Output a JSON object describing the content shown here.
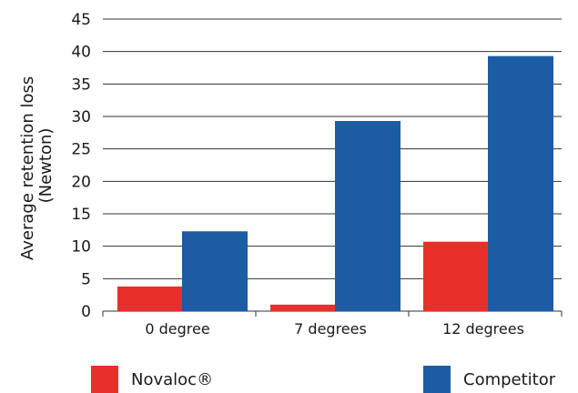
{
  "chart_data": {
    "type": "bar",
    "categories": [
      "0 degree",
      "7 degrees",
      "12 degrees"
    ],
    "series": [
      {
        "name": "Novaloc®",
        "values": [
          3.8,
          1.0,
          10.7
        ],
        "color": "#e8302a"
      },
      {
        "name": "Competitor",
        "values": [
          12.3,
          29.3,
          39.3
        ],
        "color": "#1b5ca3"
      }
    ],
    "ylabel_line1": "Average retention loss",
    "ylabel_line2": "(Newton)",
    "ylim": [
      0,
      45
    ],
    "yticks": [
      0,
      5,
      10,
      15,
      20,
      25,
      30,
      35,
      40,
      45
    ],
    "grid": true,
    "legend_position": "bottom"
  }
}
